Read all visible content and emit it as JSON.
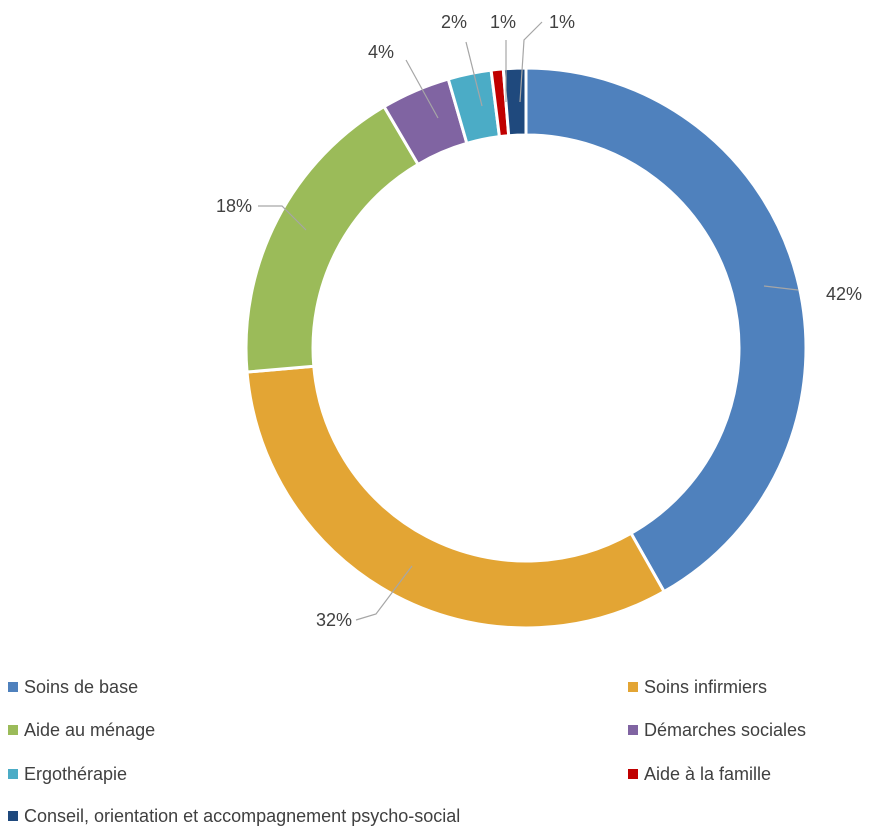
{
  "chart_data": {
    "type": "pie",
    "variant": "donut",
    "title": "",
    "slices": [
      {
        "label": "Soins de base",
        "value": 42,
        "display": "42%",
        "color": "#4f81bd"
      },
      {
        "label": "Soins infirmiers",
        "value": 32,
        "display": "32%",
        "color": "#e3a534"
      },
      {
        "label": "Aide au ménage",
        "value": 18,
        "display": "18%",
        "color": "#9bbb59"
      },
      {
        "label": "Démarches sociales",
        "value": 4,
        "display": "4%",
        "color": "#8064a2"
      },
      {
        "label": "Ergothérapie",
        "value": 2.5,
        "display": "2%",
        "color": "#4bacc6"
      },
      {
        "label": "Aide à la famille",
        "value": 0.7,
        "display": "1%",
        "color": "#c00000"
      },
      {
        "label": "Conseil, orientation et accompagnement psycho-social",
        "value": 1.3,
        "display": "1%",
        "color": "#1f497d"
      }
    ],
    "legend_position": "bottom"
  }
}
